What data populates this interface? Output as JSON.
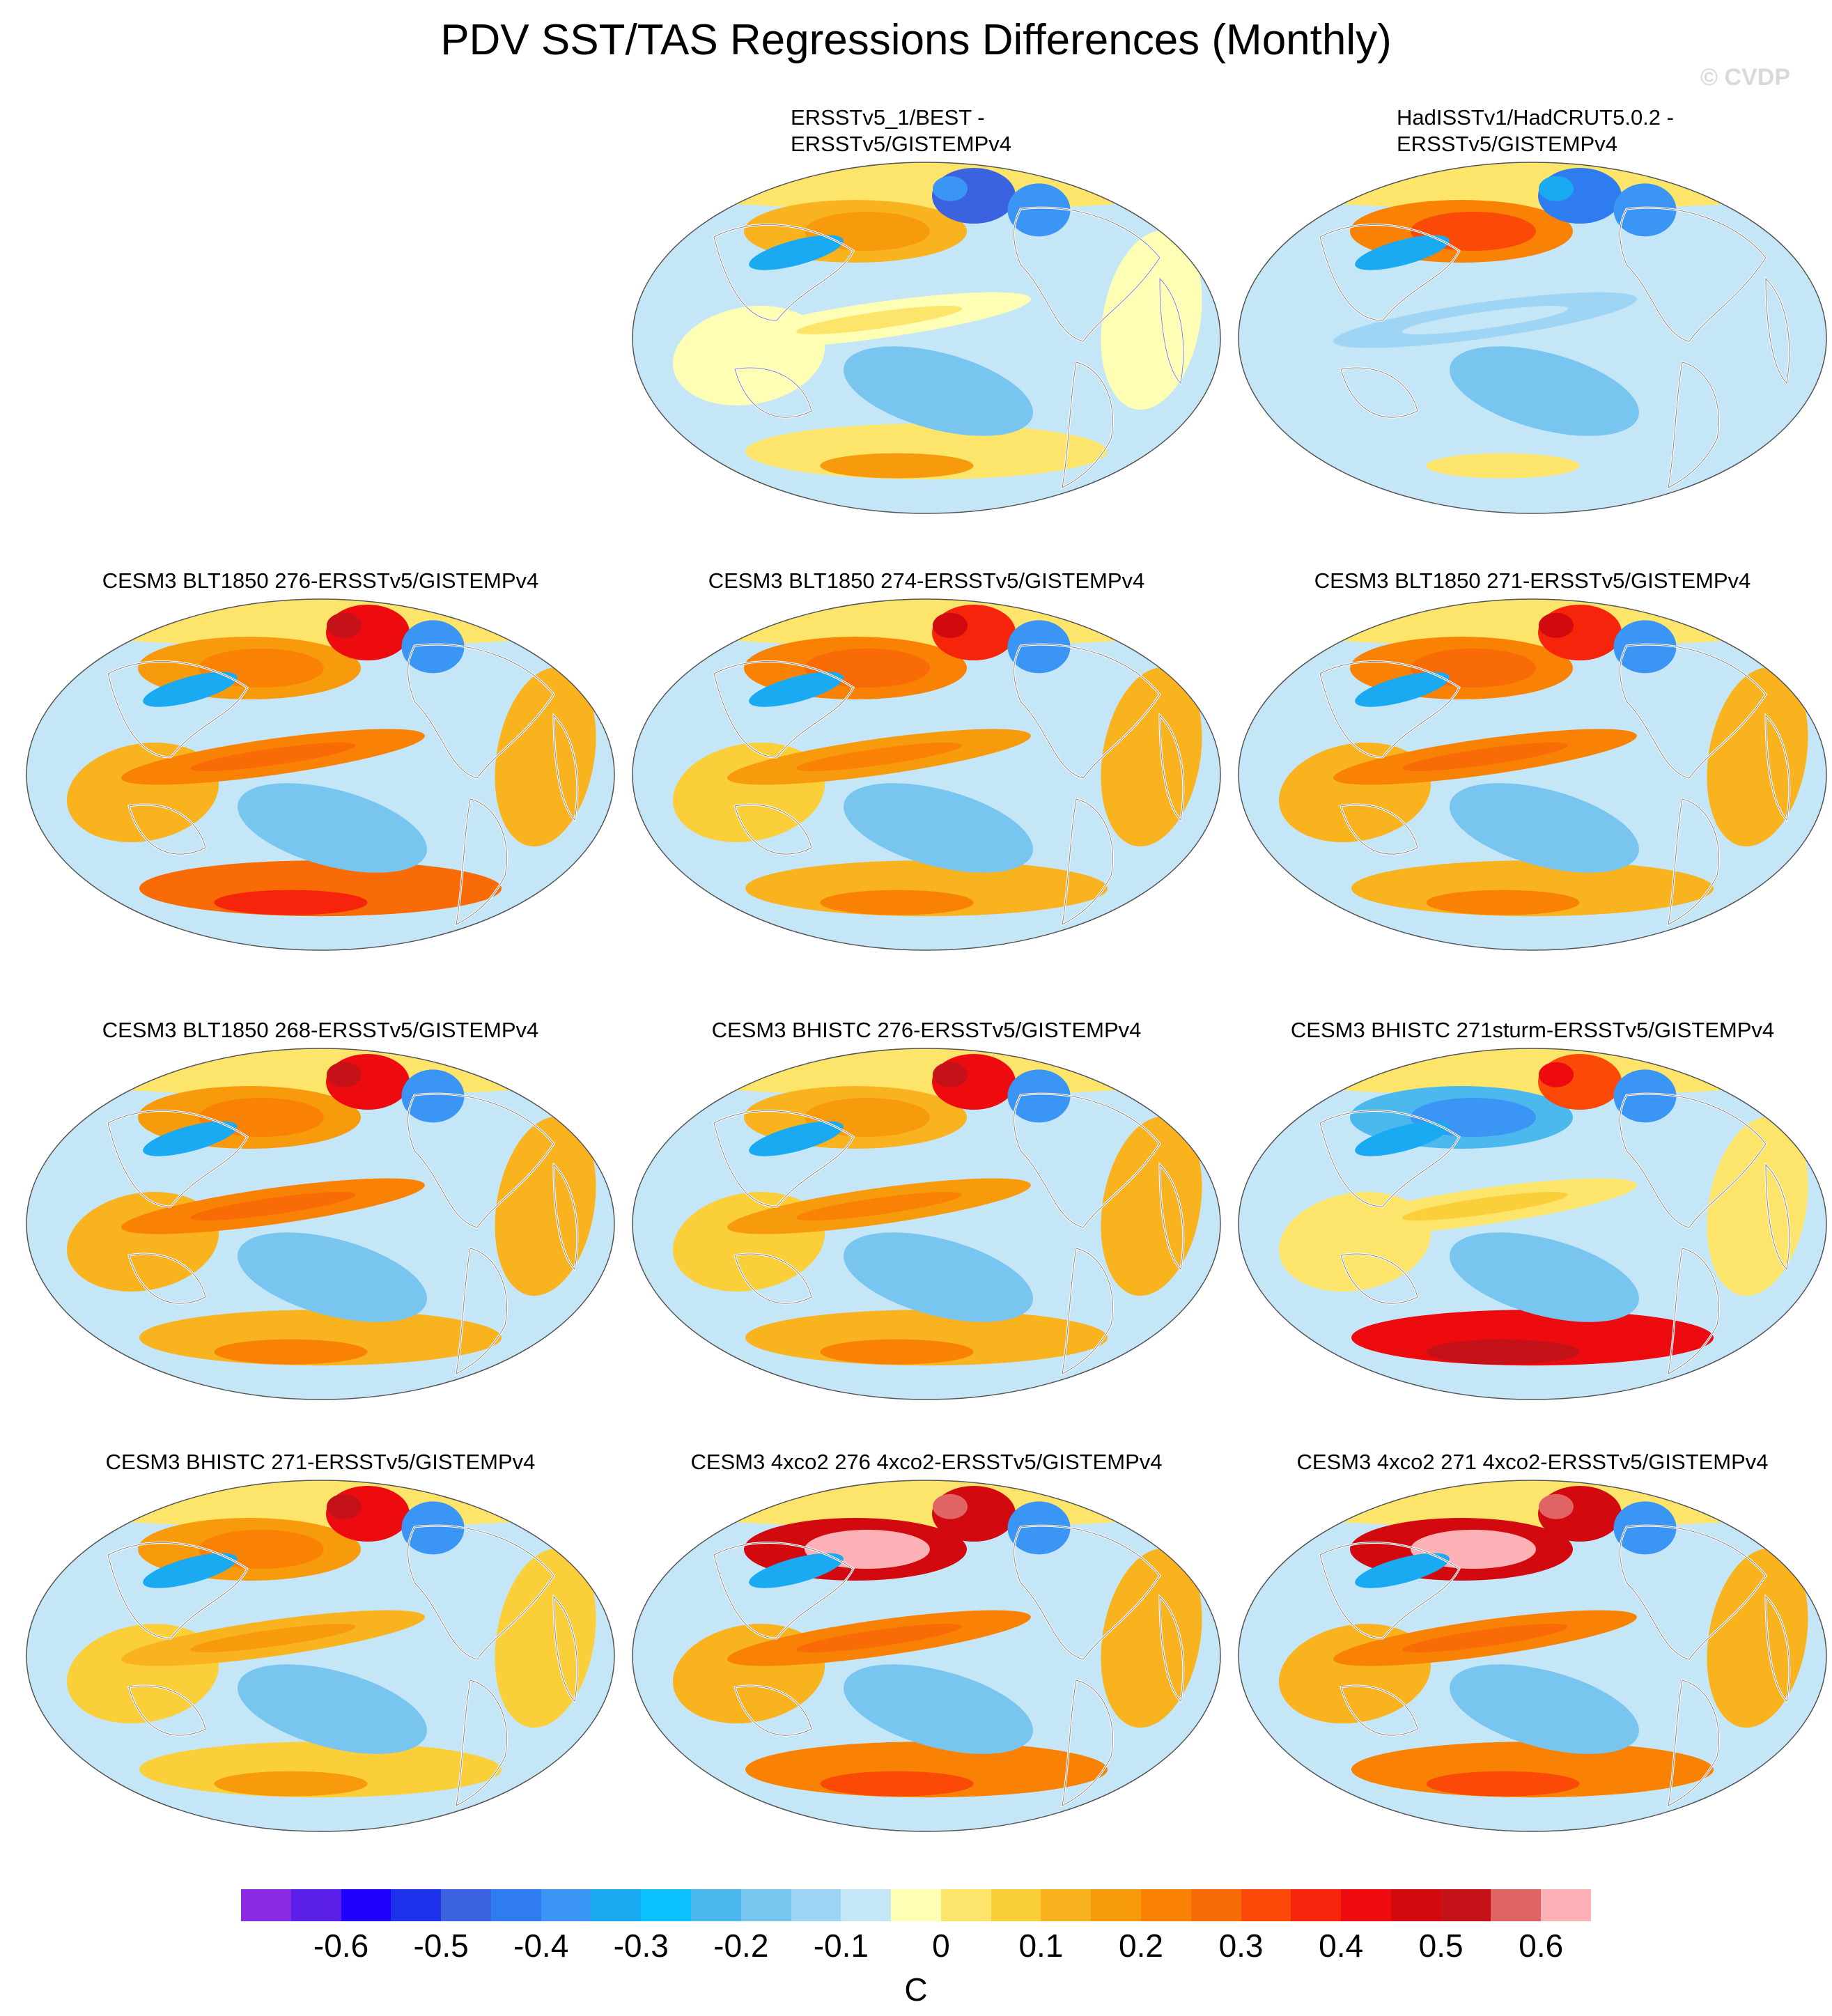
{
  "chart_data": {
    "type": "heatmap",
    "title": "PDV SST/TAS Regressions Differences (Monthly)",
    "watermark": "© CVDP",
    "projection": "global",
    "units": "C",
    "colorbar": {
      "levels": [
        -0.65,
        -0.6,
        -0.55,
        -0.5,
        -0.45,
        -0.4,
        -0.35,
        -0.3,
        -0.25,
        -0.2,
        -0.15,
        -0.1,
        -0.05,
        0,
        0.05,
        0.1,
        0.15,
        0.2,
        0.25,
        0.3,
        0.35,
        0.4,
        0.45,
        0.5,
        0.55,
        0.6,
        0.65
      ],
      "tick_labels": [
        "-0.6",
        "-0.5",
        "-0.4",
        "-0.3",
        "-0.2",
        "-0.1",
        "0",
        "0.1",
        "0.2",
        "0.3",
        "0.4",
        "0.5",
        "0.6"
      ],
      "colors": [
        "#8a2be2",
        "#5a1fe8",
        "#1f00ff",
        "#1e32ec",
        "#3b63e0",
        "#2e7cf0",
        "#3a95f5",
        "#19aaf2",
        "#0bc2ff",
        "#4bb8ee",
        "#78c6f0",
        "#9fd5f4",
        "#c4e6f7",
        "#fefeb4",
        "#fde46b",
        "#fbcf3a",
        "#f9b31e",
        "#f79b0c",
        "#f98205",
        "#f96b06",
        "#fb4a08",
        "#f5240b",
        "#ee0b10",
        "#d30910",
        "#c41218",
        "#e16464",
        "#fcb1b6"
      ]
    },
    "panels": [
      {
        "title_lines": [
          "ERSSTv5_1/BEST -",
          "ERSSTv5/GISTEMPv4"
        ],
        "pacific_anomaly": 0.2,
        "tropical_band": 0.0,
        "southern_band": 0.05,
        "arctic": -0.45
      },
      {
        "title_lines": [
          "HadISSTv1/HadCRUT5.0.2 -",
          "ERSSTv5/GISTEMPv4"
        ],
        "pacific_anomaly": 0.35,
        "tropical_band": -0.1,
        "southern_band": -0.05,
        "arctic": -0.4
      },
      {
        "title_lines": [
          "CESM3 BLT1850 276-ERSSTv5/GISTEMPv4"
        ],
        "pacific_anomaly": 0.25,
        "tropical_band": 0.25,
        "southern_band": 0.3,
        "arctic": 0.45
      },
      {
        "title_lines": [
          "CESM3 BLT1850 274-ERSSTv5/GISTEMPv4"
        ],
        "pacific_anomaly": 0.3,
        "tropical_band": 0.2,
        "southern_band": 0.15,
        "arctic": 0.4
      },
      {
        "title_lines": [
          "CESM3 BLT1850 271-ERSSTv5/GISTEMPv4"
        ],
        "pacific_anomaly": 0.3,
        "tropical_band": 0.25,
        "southern_band": 0.15,
        "arctic": 0.4
      },
      {
        "title_lines": [
          "CESM3 BLT1850 268-ERSSTv5/GISTEMPv4"
        ],
        "pacific_anomaly": 0.25,
        "tropical_band": 0.25,
        "southern_band": 0.15,
        "arctic": 0.45
      },
      {
        "title_lines": [
          "CESM3 BHISTC 276-ERSSTv5/GISTEMPv4"
        ],
        "pacific_anomaly": 0.2,
        "tropical_band": 0.2,
        "southern_band": 0.15,
        "arctic": 0.45
      },
      {
        "title_lines": [
          "CESM3 BHISTC 271sturm-ERSSTv5/GISTEMPv4"
        ],
        "pacific_anomaly": -0.35,
        "tropical_band": 0.05,
        "southern_band": 0.45,
        "arctic": 0.35
      },
      {
        "title_lines": [
          "CESM3 BHISTC 271-ERSSTv5/GISTEMPv4"
        ],
        "pacific_anomaly": 0.25,
        "tropical_band": 0.15,
        "southern_band": 0.1,
        "arctic": 0.45
      },
      {
        "title_lines": [
          "CESM3 4xco2 276 4xco2-ERSSTv5/GISTEMPv4"
        ],
        "pacific_anomaly": 0.65,
        "tropical_band": 0.25,
        "southern_band": 0.25,
        "arctic": 0.5
      },
      {
        "title_lines": [
          "CESM3 4xco2 271 4xco2-ERSSTv5/GISTEMPv4"
        ],
        "pacific_anomaly": 0.65,
        "tropical_band": 0.25,
        "southern_band": 0.25,
        "arctic": 0.5
      }
    ]
  }
}
